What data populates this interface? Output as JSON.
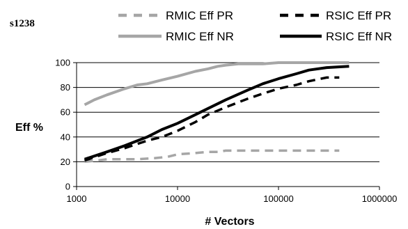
{
  "chart_data": {
    "type": "line",
    "title": "s1238",
    "xlabel": "# Vectors",
    "ylabel": "Eff %",
    "x_scale": "log",
    "xlim": [
      1000,
      1000000
    ],
    "ylim": [
      0,
      100
    ],
    "x_ticks": [
      "1000",
      "10000",
      "100000",
      "1000000"
    ],
    "y_ticks": [
      "0",
      "20",
      "40",
      "60",
      "80",
      "100"
    ],
    "grid": "horizontal",
    "legend_position": "top",
    "series": [
      {
        "name": "RMIC Eff PR",
        "color": "#a6a6a6",
        "dash": "dashed",
        "x": [
          1200,
          1600,
          2000,
          3000,
          4000,
          6000,
          8000,
          10000,
          15000,
          20000,
          25000,
          30000,
          50000,
          100000,
          200000,
          400000
        ],
        "y": [
          20,
          21,
          22,
          22,
          22,
          23,
          24,
          26,
          27,
          28,
          28,
          29,
          29,
          29,
          29,
          29
        ]
      },
      {
        "name": "RSIC Eff PR",
        "color": "#000000",
        "dash": "dashed",
        "x": [
          1200,
          2000,
          3000,
          5000,
          7000,
          10000,
          15000,
          20000,
          30000,
          50000,
          70000,
          100000,
          150000,
          200000,
          300000,
          400000
        ],
        "y": [
          21,
          27,
          31,
          37,
          40,
          45,
          52,
          58,
          64,
          71,
          75,
          79,
          82,
          85,
          88,
          88
        ]
      },
      {
        "name": "RMIC Eff NR",
        "color": "#a6a6a6",
        "dash": "solid",
        "x": [
          1200,
          1500,
          2000,
          3000,
          4000,
          5000,
          7000,
          10000,
          15000,
          20000,
          25000,
          30000,
          40000,
          50000,
          70000,
          100000,
          200000,
          500000
        ],
        "y": [
          66,
          70,
          74,
          79,
          82,
          83,
          86,
          89,
          93,
          95,
          97,
          98,
          99,
          99,
          99,
          100,
          100,
          100
        ]
      },
      {
        "name": "RSIC Eff NR",
        "color": "#000000",
        "dash": "solid",
        "x": [
          1200,
          2000,
          3000,
          5000,
          7000,
          10000,
          15000,
          20000,
          30000,
          50000,
          70000,
          100000,
          150000,
          200000,
          300000,
          500000
        ],
        "y": [
          22,
          28,
          33,
          40,
          46,
          51,
          58,
          63,
          70,
          78,
          83,
          87,
          91,
          94,
          96,
          97
        ]
      }
    ]
  }
}
